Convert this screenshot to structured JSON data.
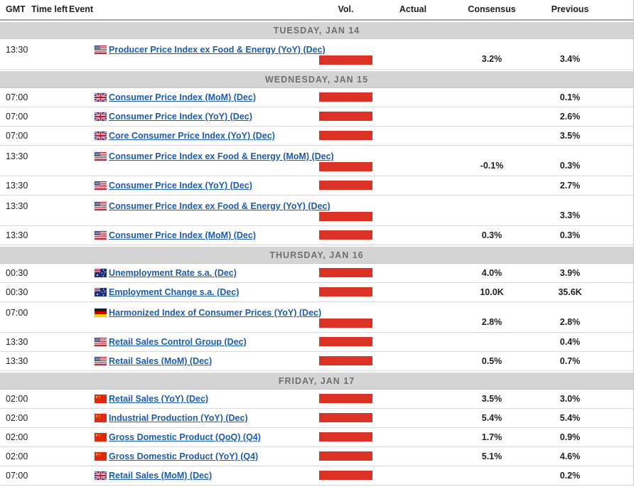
{
  "colors": {
    "volatility_bar": "#db3225",
    "event_link": "#1b5cb1",
    "day_header_bg": "#d4d4d4",
    "day_header_text": "#6f6f6f"
  },
  "header": {
    "columns": [
      {
        "id": "gmt",
        "label": "GMT"
      },
      {
        "id": "timeleft",
        "label": "Time left"
      },
      {
        "id": "event",
        "label": "Event"
      },
      {
        "id": "vol",
        "label": "Vol."
      },
      {
        "id": "actual",
        "label": "Actual"
      },
      {
        "id": "consensus",
        "label": "Consensus"
      },
      {
        "id": "previous",
        "label": "Previous"
      }
    ]
  },
  "days": [
    {
      "label": "TUESDAY, JAN 14",
      "rows": [
        {
          "gmt": "13:30",
          "country": "us",
          "event": "Producer Price Index ex Food & Energy (YoY) (Dec)",
          "actual": "",
          "consensus": "3.2%",
          "previous": "3.4%"
        }
      ]
    },
    {
      "label": "WEDNESDAY, JAN 15",
      "rows": [
        {
          "gmt": "07:00",
          "country": "uk",
          "event": "Consumer Price Index (MoM) (Dec)",
          "actual": "",
          "consensus": "",
          "previous": "0.1%"
        },
        {
          "gmt": "07:00",
          "country": "uk",
          "event": "Consumer Price Index (YoY) (Dec)",
          "actual": "",
          "consensus": "",
          "previous": "2.6%"
        },
        {
          "gmt": "07:00",
          "country": "uk",
          "event": "Core Consumer Price Index (YoY) (Dec)",
          "actual": "",
          "consensus": "",
          "previous": "3.5%"
        },
        {
          "gmt": "13:30",
          "country": "us",
          "event": "Consumer Price Index ex Food & Energy (MoM) (Dec)",
          "actual": "",
          "consensus": "-0.1%",
          "previous": "0.3%"
        },
        {
          "gmt": "13:30",
          "country": "us",
          "event": "Consumer Price Index (YoY) (Dec)",
          "actual": "",
          "consensus": "",
          "previous": "2.7%"
        },
        {
          "gmt": "13:30",
          "country": "us",
          "event": "Consumer Price Index ex Food & Energy (YoY) (Dec)",
          "actual": "",
          "consensus": "",
          "previous": "3.3%"
        },
        {
          "gmt": "13:30",
          "country": "us",
          "event": "Consumer Price Index (MoM) (Dec)",
          "actual": "",
          "consensus": "0.3%",
          "previous": "0.3%"
        }
      ]
    },
    {
      "label": "THURSDAY, JAN 16",
      "rows": [
        {
          "gmt": "00:30",
          "country": "au",
          "event": "Unemployment Rate s.a. (Dec)",
          "actual": "",
          "consensus": "4.0%",
          "previous": "3.9%"
        },
        {
          "gmt": "00:30",
          "country": "au",
          "event": "Employment Change s.a. (Dec)",
          "actual": "",
          "consensus": "10.0K",
          "previous": "35.6K"
        },
        {
          "gmt": "07:00",
          "country": "de",
          "event": "Harmonized Index of Consumer Prices (YoY) (Dec)",
          "actual": "",
          "consensus": "2.8%",
          "previous": "2.8%"
        },
        {
          "gmt": "13:30",
          "country": "us",
          "event": "Retail Sales Control Group (Dec)",
          "actual": "",
          "consensus": "",
          "previous": "0.4%"
        },
        {
          "gmt": "13:30",
          "country": "us",
          "event": "Retail Sales (MoM) (Dec)",
          "actual": "",
          "consensus": "0.5%",
          "previous": "0.7%"
        }
      ]
    },
    {
      "label": "FRIDAY, JAN 17",
      "rows": [
        {
          "gmt": "02:00",
          "country": "cn",
          "event": "Retail Sales (YoY) (Dec)",
          "actual": "",
          "consensus": "3.5%",
          "previous": "3.0%"
        },
        {
          "gmt": "02:00",
          "country": "cn",
          "event": "Industrial Production (YoY) (Dec)",
          "actual": "",
          "consensus": "5.4%",
          "previous": "5.4%"
        },
        {
          "gmt": "02:00",
          "country": "cn",
          "event": "Gross Domestic Product (QoQ) (Q4)",
          "actual": "",
          "consensus": "1.7%",
          "previous": "0.9%"
        },
        {
          "gmt": "02:00",
          "country": "cn",
          "event": "Gross Domestic Product (YoY) (Q4)",
          "actual": "",
          "consensus": "5.1%",
          "previous": "4.6%"
        },
        {
          "gmt": "07:00",
          "country": "uk",
          "event": "Retail Sales (MoM) (Dec)",
          "actual": "",
          "consensus": "",
          "previous": "0.2%"
        }
      ]
    }
  ]
}
